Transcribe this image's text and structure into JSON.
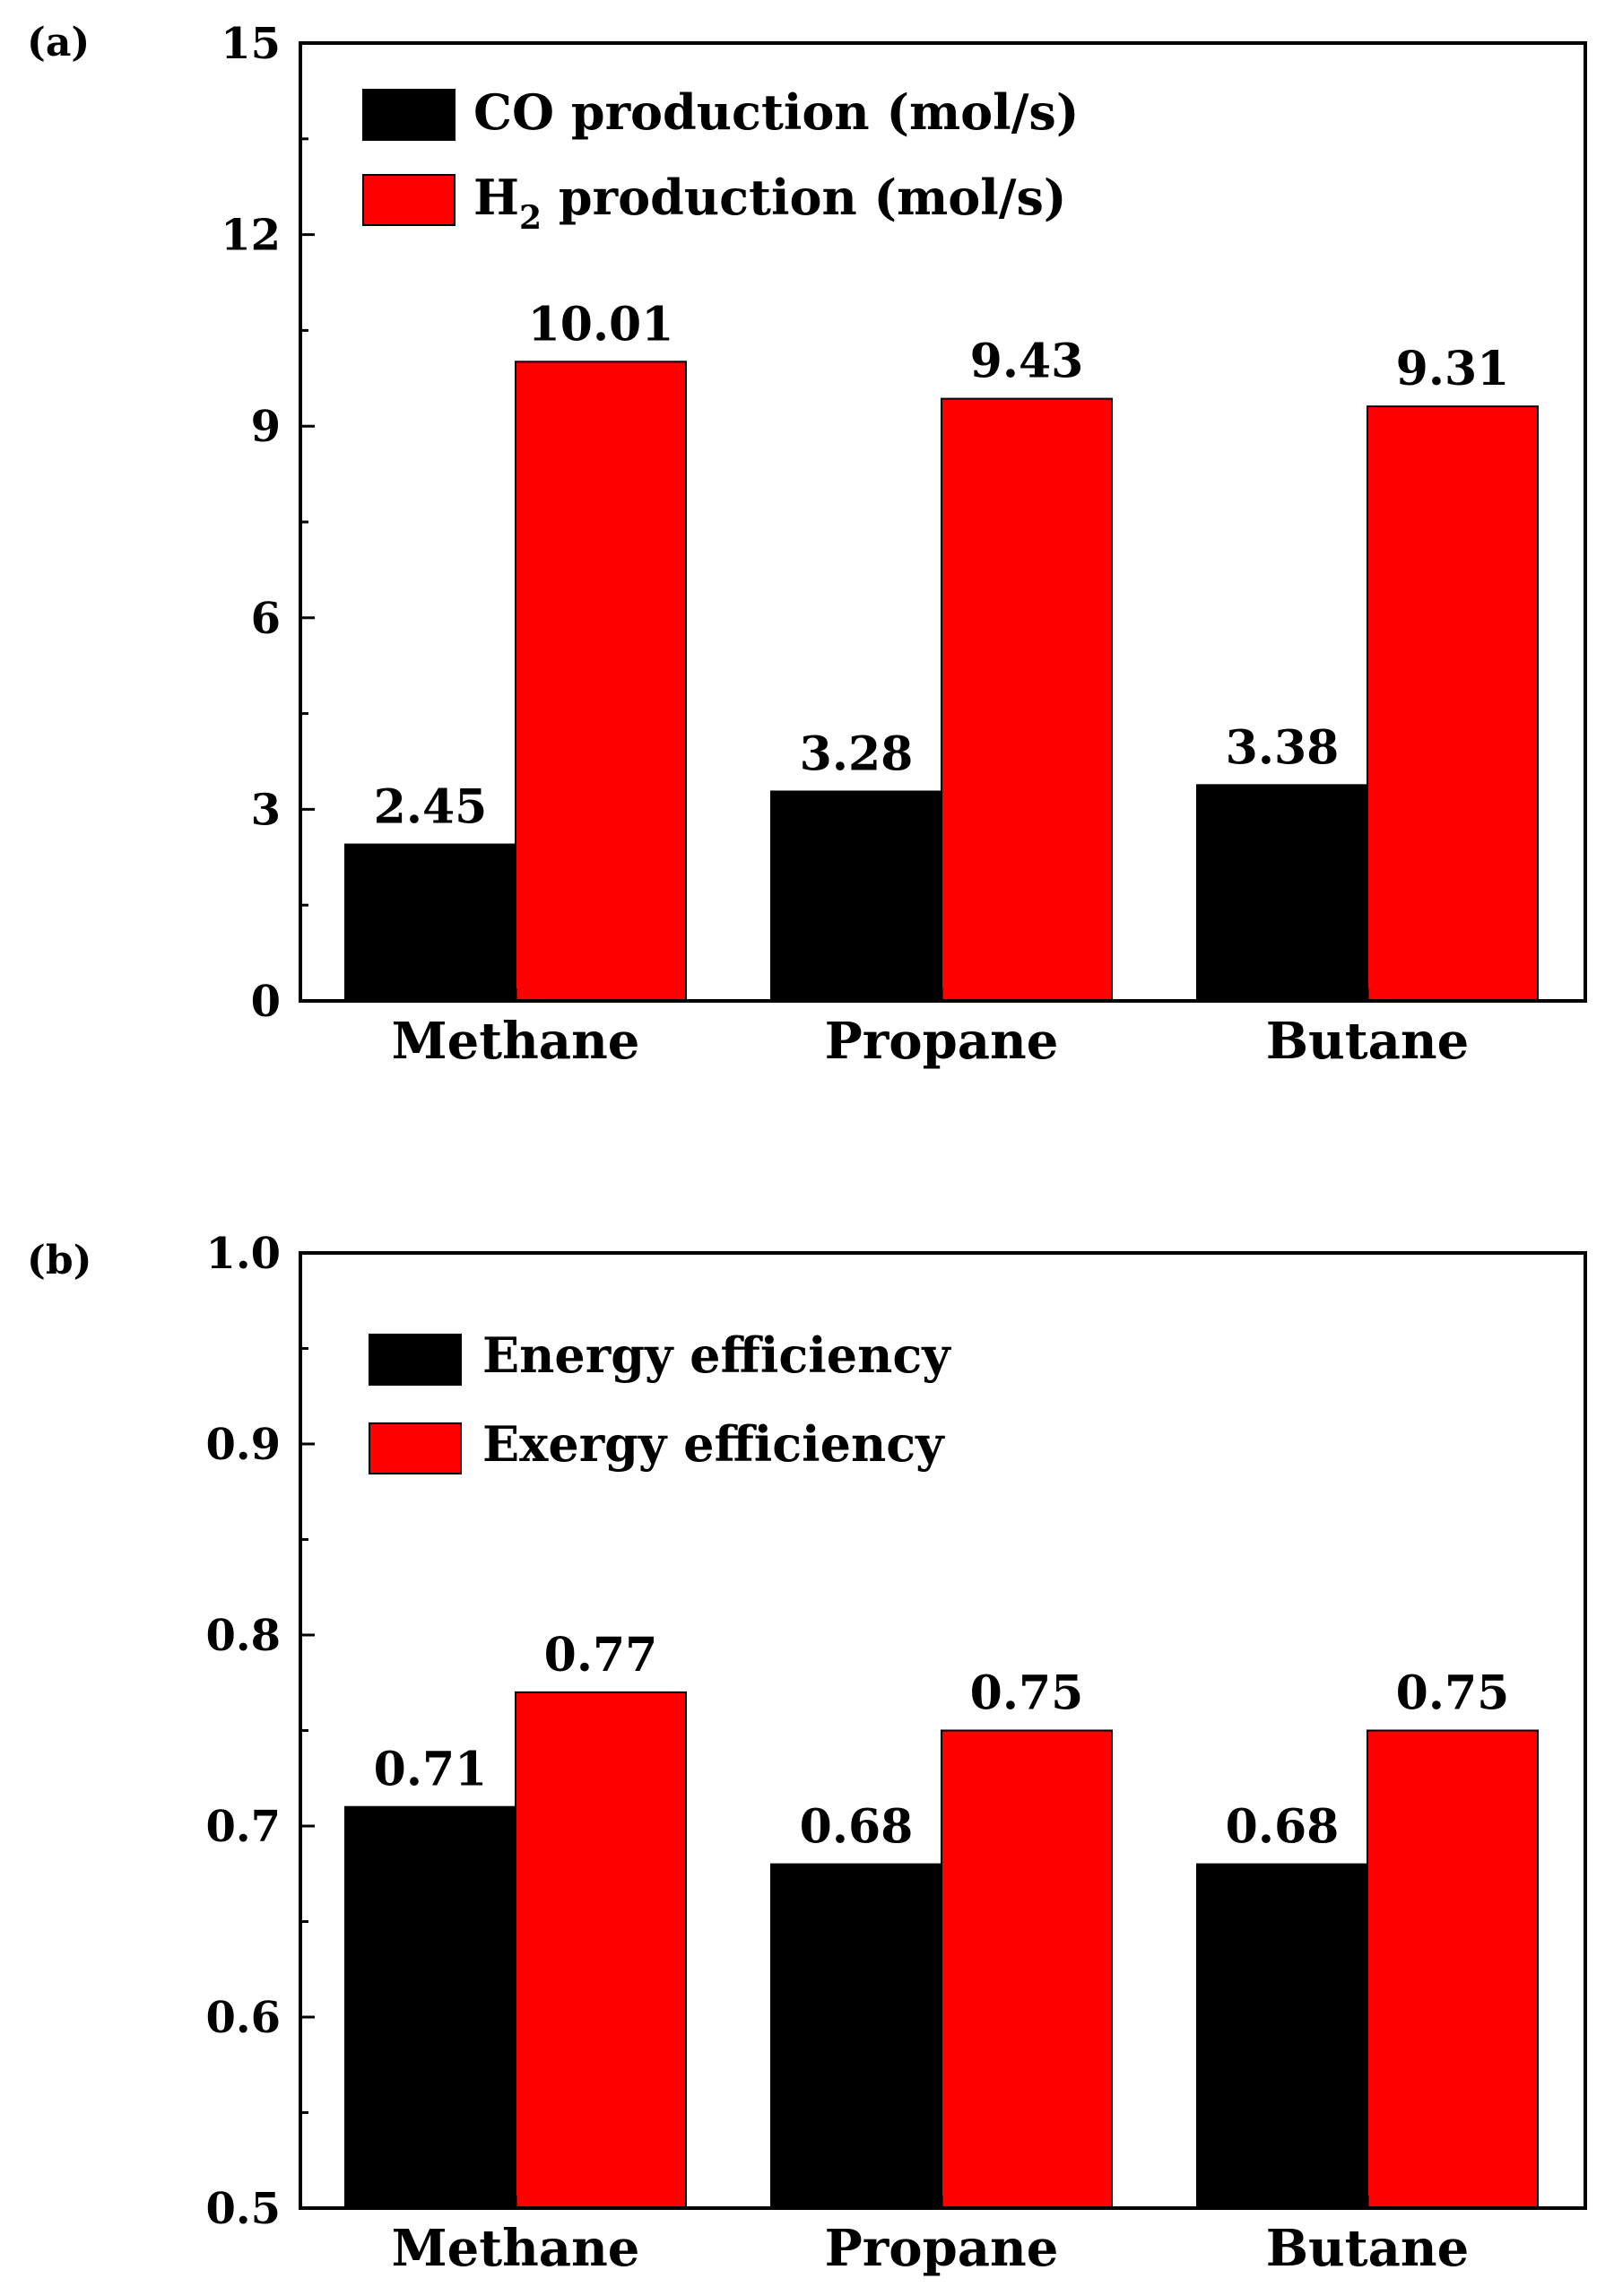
{
  "colors": {
    "series_1": "#000000",
    "series_2": "#ff0000",
    "axis": "#000000",
    "background": "#ffffff"
  },
  "chart_data": [
    {
      "panel_label": "(a)",
      "type": "bar",
      "categories": [
        "Methane",
        "Propane",
        "Butane"
      ],
      "series": [
        {
          "name": "CO production (mol/s)",
          "legend_main": "CO production (mol/s)",
          "values": [
            2.45,
            3.28,
            3.38
          ],
          "value_labels": [
            "2.45",
            "3.28",
            "3.38"
          ]
        },
        {
          "name": "H2 production (mol/s)",
          "legend_main": "H",
          "legend_sub": "2",
          "legend_rest": " production (mol/s)",
          "values": [
            10.01,
            9.43,
            9.31
          ],
          "value_labels": [
            "10.01",
            "9.43",
            "9.31"
          ]
        }
      ],
      "ylim": [
        0,
        15
      ],
      "yticks": [
        0,
        3,
        6,
        9,
        12,
        15
      ],
      "ytick_labels": [
        "0",
        "3",
        "6",
        "9",
        "12",
        "15"
      ],
      "minor_ytick_step": 1.5,
      "xlabel": "",
      "ylabel": "",
      "title": "",
      "legend_position": "top-left"
    },
    {
      "panel_label": "(b)",
      "type": "bar",
      "categories": [
        "Methane",
        "Propane",
        "Butane"
      ],
      "series": [
        {
          "name": "Energy efficiency",
          "legend_main": "Energy efficiency",
          "values": [
            0.71,
            0.68,
            0.68
          ],
          "value_labels": [
            "0.71",
            "0.68",
            "0.68"
          ]
        },
        {
          "name": "Exergy efficiency",
          "legend_main": "Exergy efficiency",
          "values": [
            0.77,
            0.75,
            0.75
          ],
          "value_labels": [
            "0.77",
            "0.75",
            "0.75"
          ]
        }
      ],
      "ylim": [
        0.5,
        1.0
      ],
      "yticks": [
        0.5,
        0.6,
        0.7,
        0.8,
        0.9,
        1.0
      ],
      "ytick_labels": [
        "0.5",
        "0.6",
        "0.7",
        "0.8",
        "0.9",
        "1.0"
      ],
      "minor_ytick_step": 0.05,
      "xlabel": "",
      "ylabel": "",
      "title": "",
      "legend_position": "top-left"
    }
  ]
}
